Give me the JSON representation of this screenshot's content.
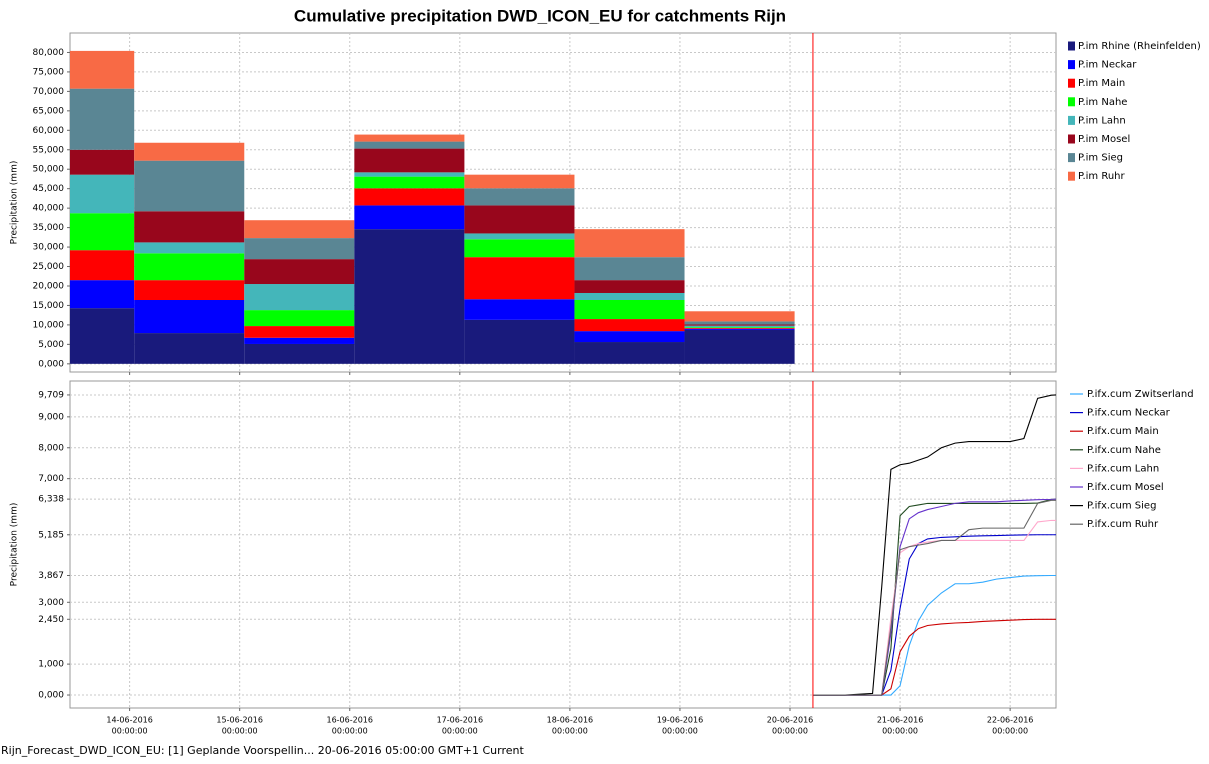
{
  "chart_data": [
    {
      "type": "stacked_histogram",
      "title": "Cumulative precipitation DWD_ICON_EU for catchments Rijn",
      "y_label": "Precipitation (mm)",
      "xlim": [
        "2016-06-13T11:00:00",
        "2016-06-22T10:00:00"
      ],
      "xticks": [
        "2016-06-14T00:00:00",
        "2016-06-15T00:00:00",
        "2016-06-16T00:00:00",
        "2016-06-17T00:00:00",
        "2016-06-18T00:00:00",
        "2016-06-19T00:00:00",
        "2016-06-20T00:00:00",
        "2016-06-21T00:00:00",
        "2016-06-22T00:00:00"
      ],
      "ylim": [
        -2.1,
        85
      ],
      "yticks": [
        {
          "value": 0,
          "label": "0,000"
        },
        {
          "value": 5,
          "label": "5,000"
        },
        {
          "value": 10,
          "label": "10,000"
        },
        {
          "value": 15,
          "label": "15,000"
        },
        {
          "value": 20,
          "label": "20,000"
        },
        {
          "value": 25,
          "label": "25,000"
        },
        {
          "value": 30,
          "label": "30,000"
        },
        {
          "value": 35,
          "label": "35,000"
        },
        {
          "value": 40,
          "label": "40,000"
        },
        {
          "value": 45,
          "label": "45,000"
        },
        {
          "value": 50,
          "label": "50,000"
        },
        {
          "value": 55,
          "label": "55,000"
        },
        {
          "value": 60,
          "label": "60,000"
        },
        {
          "value": 65,
          "label": "65,000"
        },
        {
          "value": 70,
          "label": "70,000"
        },
        {
          "value": 75,
          "label": "75,000"
        },
        {
          "value": 80,
          "label": "80,000"
        }
      ],
      "grid": true,
      "marker_x": "2016-06-20T05:00:00",
      "marker_color": "#ff0000",
      "bins": [
        "2016-06-13T01:00:00",
        "2016-06-14T01:00:00",
        "2016-06-15T01:00:00",
        "2016-06-16T01:00:00",
        "2016-06-17T01:00:00",
        "2016-06-18T01:00:00",
        "2016-06-19T01:00:00",
        "2016-06-20T01:00:00"
      ],
      "series": [
        {
          "name": "P.im Rhine (Rheinfelden)",
          "color": "#191a7c",
          "values": [
            14.3,
            7.9,
            5.1,
            34.6,
            11.3,
            5.6,
            8.7
          ]
        },
        {
          "name": "P.im Neckar",
          "color": "#0000ff",
          "values": [
            7.2,
            8.5,
            1.6,
            6.1,
            5.3,
            2.8,
            0.3
          ]
        },
        {
          "name": "P.im Main",
          "color": "#ff0000",
          "values": [
            7.7,
            5.1,
            3.0,
            4.4,
            10.8,
            3.1,
            0.2
          ]
        },
        {
          "name": "P.im Nahe",
          "color": "#00ff00",
          "values": [
            9.5,
            6.9,
            4.1,
            3.0,
            4.6,
            4.9,
            0.2
          ]
        },
        {
          "name": "P.im Lahn",
          "color": "#44b6ba",
          "values": [
            9.9,
            2.8,
            6.7,
            1.1,
            1.5,
            1.8,
            0.4
          ]
        },
        {
          "name": "P.im Mosel",
          "color": "#98061c",
          "values": [
            6.4,
            8.0,
            6.4,
            6.1,
            7.2,
            3.3,
            0.3
          ]
        },
        {
          "name": "P.im Sieg",
          "color": "#5a8694",
          "values": [
            15.7,
            13.0,
            5.4,
            1.8,
            4.4,
            5.9,
            0.8
          ]
        },
        {
          "name": "P.im Ruhr",
          "color": "#f86a45",
          "values": [
            9.7,
            4.6,
            4.6,
            1.8,
            3.5,
            7.2,
            2.6
          ]
        }
      ]
    },
    {
      "type": "line",
      "y_label": "Precipitation (mm)",
      "xlim": [
        "2016-06-13T11:00:00",
        "2016-06-22T10:00:00"
      ],
      "xticks": [
        {
          "value": "2016-06-14T00:00:00",
          "label": [
            "14-06-2016",
            "00:00:00"
          ]
        },
        {
          "value": "2016-06-15T00:00:00",
          "label": [
            "15-06-2016",
            "00:00:00"
          ]
        },
        {
          "value": "2016-06-16T00:00:00",
          "label": [
            "16-06-2016",
            "00:00:00"
          ]
        },
        {
          "value": "2016-06-17T00:00:00",
          "label": [
            "17-06-2016",
            "00:00:00"
          ]
        },
        {
          "value": "2016-06-18T00:00:00",
          "label": [
            "18-06-2016",
            "00:00:00"
          ]
        },
        {
          "value": "2016-06-19T00:00:00",
          "label": [
            "19-06-2016",
            "00:00:00"
          ]
        },
        {
          "value": "2016-06-20T00:00:00",
          "label": [
            "20-06-2016",
            "00:00:00"
          ]
        },
        {
          "value": "2016-06-21T00:00:00",
          "label": [
            "21-06-2016",
            "00:00:00"
          ]
        },
        {
          "value": "2016-06-22T00:00:00",
          "label": [
            "22-06-2016",
            "00:00:00"
          ]
        }
      ],
      "ylim": [
        -0.42,
        10.16
      ],
      "yticks": [
        {
          "value": 0,
          "label": "0,000"
        },
        {
          "value": 1,
          "label": "1,000"
        },
        {
          "value": 2.45,
          "label": "2,450",
          "color": "#ff0000"
        },
        {
          "value": 3,
          "label": "3,000"
        },
        {
          "value": 3.867,
          "label": "3,867",
          "color": "#33aaff"
        },
        {
          "value": 5.185,
          "label": "5,185",
          "color": "#0000cc"
        },
        {
          "value": 6.338,
          "label": "6,338",
          "color": "#2d6b2d"
        },
        {
          "value": 7,
          "label": "7,000"
        },
        {
          "value": 8,
          "label": "8,000"
        },
        {
          "value": 9,
          "label": "9,000"
        },
        {
          "value": 9.709,
          "label": "9,709"
        }
      ],
      "grid": true,
      "marker_x": "2016-06-20T05:00:00",
      "marker_color": "#ff0000",
      "x": [
        "2016-06-20T05:00:00",
        "2016-06-20T12:00:00",
        "2016-06-20T18:00:00",
        "2016-06-20T20:00:00",
        "2016-06-20T22:00:00",
        "2016-06-21T00:00:00",
        "2016-06-21T02:00:00",
        "2016-06-21T04:00:00",
        "2016-06-21T06:00:00",
        "2016-06-21T09:00:00",
        "2016-06-21T12:00:00",
        "2016-06-21T15:00:00",
        "2016-06-21T18:00:00",
        "2016-06-21T21:00:00",
        "2016-06-22T00:00:00",
        "2016-06-22T03:00:00",
        "2016-06-22T06:00:00",
        "2016-06-22T09:00:00",
        "2016-06-22T10:00:00"
      ],
      "series": [
        {
          "name": "P.ifx.cum Zwitserland",
          "color": "#33aaff",
          "values": [
            0,
            0,
            0,
            0,
            0,
            0.3,
            1.6,
            2.4,
            2.9,
            3.3,
            3.6,
            3.6,
            3.65,
            3.75,
            3.8,
            3.85,
            3.86,
            3.867,
            3.867
          ]
        },
        {
          "name": "P.ifx.cum Neckar",
          "color": "#0000cc",
          "values": [
            0,
            0,
            0,
            0,
            0.8,
            2.8,
            4.4,
            4.9,
            5.05,
            5.1,
            5.12,
            5.14,
            5.15,
            5.16,
            5.17,
            5.18,
            5.185,
            5.185,
            5.185
          ]
        },
        {
          "name": "P.ifx.cum Main",
          "color": "#cc0000",
          "values": [
            0,
            0,
            0,
            0,
            0.2,
            1.4,
            1.9,
            2.15,
            2.25,
            2.3,
            2.33,
            2.35,
            2.38,
            2.4,
            2.42,
            2.44,
            2.45,
            2.45,
            2.45
          ]
        },
        {
          "name": "P.ifx.cum Nahe",
          "color": "#1f4a1f",
          "values": [
            0,
            0,
            0,
            0,
            1.5,
            5.8,
            6.1,
            6.15,
            6.2,
            6.2,
            6.2,
            6.2,
            6.2,
            6.2,
            6.2,
            6.2,
            6.21,
            6.33,
            6.338
          ]
        },
        {
          "name": "P.ifx.cum Lahn",
          "color": "#ffa8cc",
          "values": [
            0,
            0,
            0,
            0,
            2.5,
            4.6,
            4.8,
            4.9,
            4.95,
            5.0,
            5.0,
            5.0,
            5.0,
            5.0,
            5.0,
            5.0,
            5.6,
            5.65,
            5.65
          ]
        },
        {
          "name": "P.ifx.cum Mosel",
          "color": "#6633cc",
          "values": [
            0,
            0,
            0,
            0,
            2.0,
            4.8,
            5.7,
            5.9,
            6.0,
            6.1,
            6.2,
            6.25,
            6.25,
            6.25,
            6.28,
            6.3,
            6.32,
            6.33,
            6.338
          ]
        },
        {
          "name": "P.ifx.cum Sieg",
          "color": "#000000",
          "values": [
            0,
            0,
            0.05,
            3.5,
            7.3,
            7.45,
            7.5,
            7.6,
            7.7,
            8.0,
            8.15,
            8.2,
            8.2,
            8.2,
            8.2,
            8.3,
            9.6,
            9.7,
            9.709
          ]
        },
        {
          "name": "P.ifx.cum Ruhr",
          "color": "#666666",
          "values": [
            0,
            0,
            0,
            0,
            2.2,
            4.7,
            4.8,
            4.85,
            4.9,
            5.0,
            5.0,
            5.35,
            5.4,
            5.4,
            5.4,
            5.4,
            6.2,
            6.3,
            6.3
          ]
        }
      ]
    }
  ],
  "footer": "Rijn_Forecast_DWD_ICON_EU: [1] Geplande Voorspellin... 20-06-2016 05:00:00 GMT+1 Current"
}
